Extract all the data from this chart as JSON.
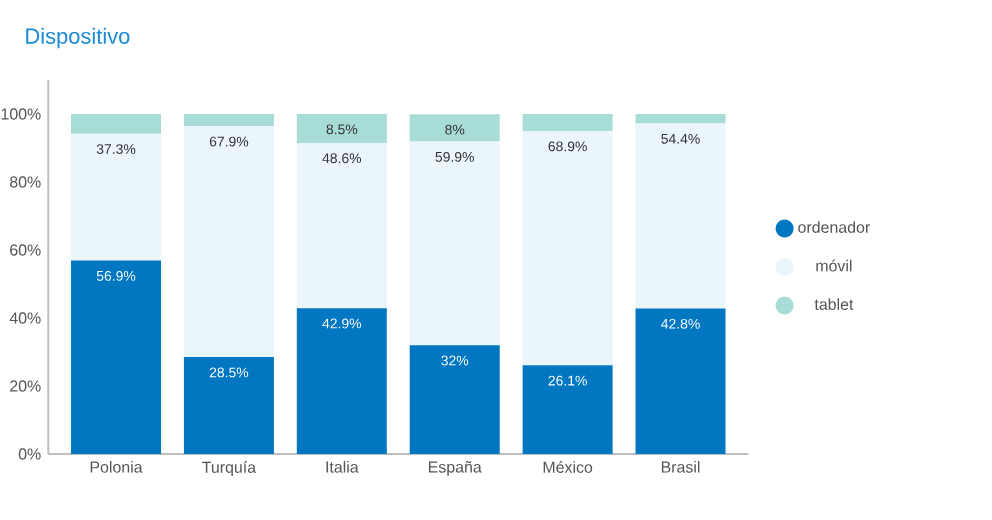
{
  "chart_data": {
    "type": "bar",
    "title": "Dispositivo",
    "stacked": true,
    "legend": "right",
    "categories": [
      "Polonia",
      "Turquía",
      "Italia",
      "España",
      "México",
      "Brasil"
    ],
    "ylim": [
      0,
      110
    ],
    "yticks": [
      {
        "value": 0,
        "label": "0%"
      },
      {
        "value": 20,
        "label": "20%"
      },
      {
        "value": 40,
        "label": "40%"
      },
      {
        "value": 60,
        "label": "60%"
      },
      {
        "value": 80,
        "label": "80%"
      },
      {
        "value": 100,
        "label": "100%"
      }
    ],
    "series": [
      {
        "name": "ordenador",
        "color": "#0077c0",
        "values": [
          56.9,
          28.5,
          42.9,
          32,
          26.1,
          42.8
        ],
        "value_labels": [
          "56.9%",
          "28.5%",
          "42.9%",
          "32%",
          "26.1%",
          "42.8%"
        ]
      },
      {
        "name": "móvil",
        "color": "#eaf5fc",
        "values": [
          37.3,
          67.9,
          48.6,
          59.9,
          68.9,
          54.4
        ],
        "value_labels": [
          "37.3%",
          "67.9%",
          "48.6%",
          "59.9%",
          "68.9%",
          "54.4%"
        ]
      },
      {
        "name": "tablet",
        "color": "#a8dcd6",
        "values": [
          5.8,
          3.6,
          8.5,
          8,
          5.0,
          2.8
        ],
        "value_labels": [
          null,
          null,
          "8.5%",
          "8%",
          null,
          null
        ]
      }
    ]
  }
}
